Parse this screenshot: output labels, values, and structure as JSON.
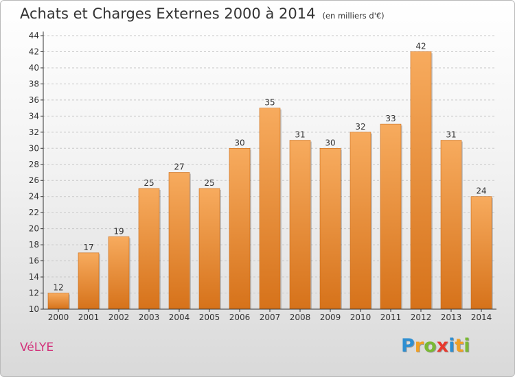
{
  "header": {
    "title": "Achats et Charges Externes 2000 à 2014",
    "unit": "(en milliers d'€)"
  },
  "footer": {
    "commune": "VéLYE",
    "logo_letters": [
      {
        "ch": "P",
        "color": "#2f8fd1"
      },
      {
        "ch": "r",
        "color": "#f2a024"
      },
      {
        "ch": "o",
        "color": "#7ab934"
      },
      {
        "ch": "x",
        "color": "#e83a2e"
      },
      {
        "ch": "i",
        "color": "#2f8fd1"
      },
      {
        "ch": "t",
        "color": "#f2a024"
      },
      {
        "ch": "i",
        "color": "#7ab934"
      }
    ]
  },
  "colors": {
    "bar_light": "#f6a85a",
    "bar_dark": "#d8741c",
    "axis": "#333333",
    "grid": "#c8c8c8"
  },
  "chart_data": {
    "type": "bar",
    "title": "Achats et Charges Externes 2000 à 2014",
    "subtitle": "(en milliers d'€)",
    "categories": [
      "2000",
      "2001",
      "2002",
      "2003",
      "2004",
      "2005",
      "2006",
      "2007",
      "2008",
      "2009",
      "2010",
      "2011",
      "2012",
      "2013",
      "2014"
    ],
    "values": [
      12,
      17,
      19,
      25,
      27,
      25,
      30,
      35,
      31,
      30,
      32,
      33,
      42,
      31,
      24
    ],
    "ylim": [
      10,
      44
    ],
    "yticks": [
      10,
      12,
      14,
      16,
      18,
      20,
      22,
      24,
      26,
      28,
      30,
      32,
      34,
      36,
      38,
      40,
      42,
      44
    ],
    "grid": "horizontal dashed",
    "xlabel": "",
    "ylabel": ""
  }
}
